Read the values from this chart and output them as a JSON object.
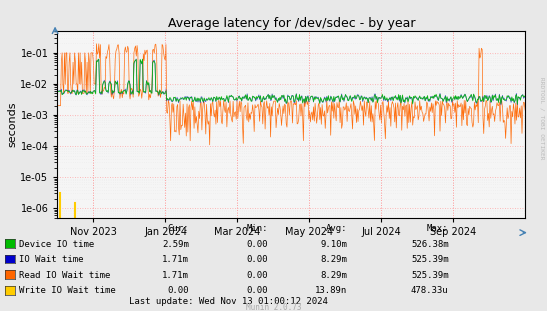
{
  "title": "Average latency for /dev/sdec - by year",
  "ylabel": "seconds",
  "background_color": "#e8e8e8",
  "plot_bg_color": "#f5f5f5",
  "grid_color_major": "#ff9999",
  "grid_color_minor": "#dddddd",
  "ytick_labels": [
    "1e-06",
    "1e-05",
    "1e-04",
    "1e-03",
    "1e-02",
    "1e-01"
  ],
  "ytick_values": [
    1e-06,
    1e-05,
    0.0001,
    0.001,
    0.01,
    0.1
  ],
  "ylim": [
    5e-07,
    0.5
  ],
  "legend_entries": [
    {
      "label": "Device IO time",
      "color": "#00bb00"
    },
    {
      "label": "IO Wait time",
      "color": "#0000cc"
    },
    {
      "label": "Read IO Wait time",
      "color": "#ff6600"
    },
    {
      "label": "Write IO Wait time",
      "color": "#ffcc00"
    }
  ],
  "col_headers": [
    "Cur:",
    "Min:",
    "Avg:",
    "Max:"
  ],
  "table_rows": [
    [
      "2.59m",
      "0.00",
      "9.10m",
      "526.38m"
    ],
    [
      "1.71m",
      "0.00",
      "8.29m",
      "525.39m"
    ],
    [
      "1.71m",
      "0.00",
      "8.29m",
      "525.39m"
    ],
    [
      "0.00",
      "0.00",
      "13.89n",
      "478.33u"
    ]
  ],
  "footer": "Last update: Wed Nov 13 01:00:12 2024",
  "watermark": "Munin 2.0.73",
  "right_text": "RRDTOOL / TOBI OETIKER",
  "xticklabels": [
    "Nov 2023",
    "Jan 2024",
    "Mar 2024",
    "May 2024",
    "Jul 2024",
    "Sep 2024"
  ],
  "xtick_fracs": [
    0.077,
    0.231,
    0.385,
    0.538,
    0.692,
    0.846
  ]
}
